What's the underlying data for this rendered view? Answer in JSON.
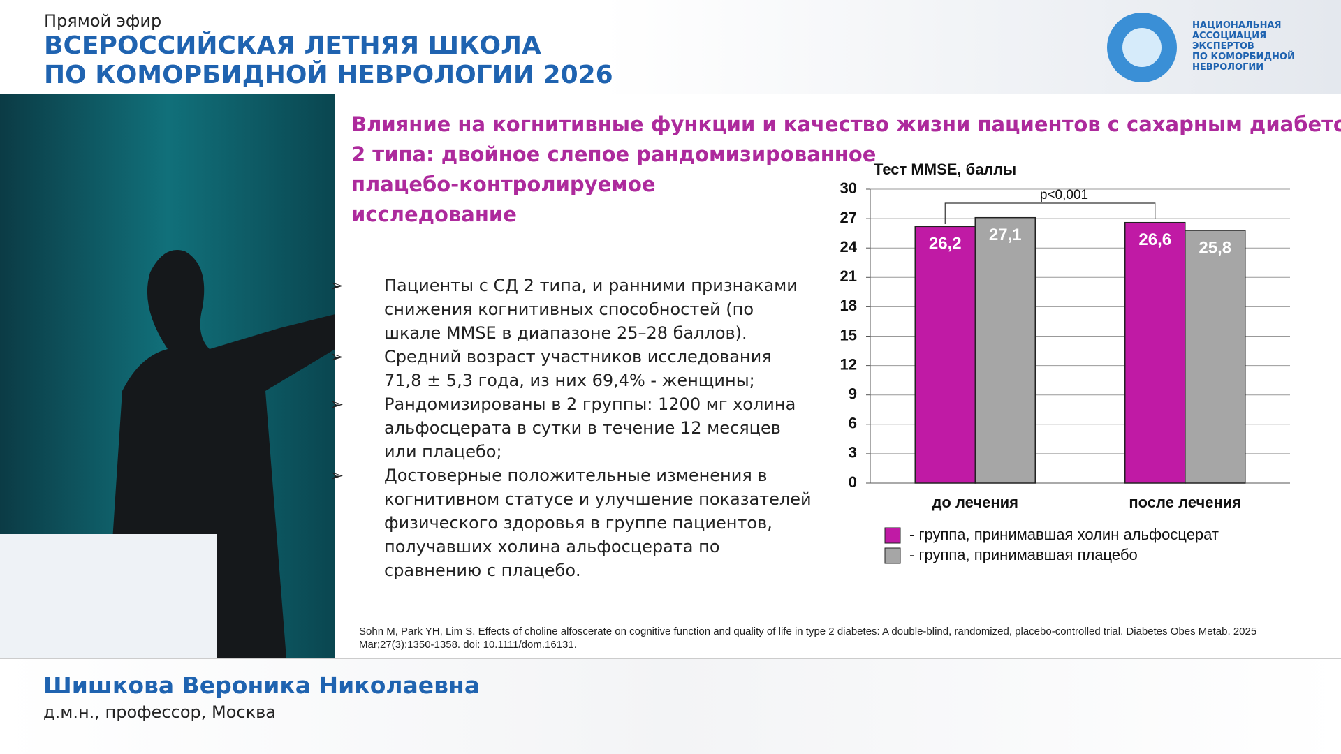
{
  "header": {
    "live": "Прямой эфир",
    "title_lines": [
      "ВСЕРОССИЙСКАЯ ЛЕТНЯЯ ШКОЛА",
      "ПО КОМОРБИДНОЙ НЕВРОЛОГИИ 2026"
    ]
  },
  "logo": {
    "lines": [
      "НАЦИОНАЛЬНАЯ",
      "АССОЦИАЦИЯ",
      "ЭКСПЕРТОВ",
      "ПО КОМОРБИДНОЙ",
      "НЕВРОЛОГИИ"
    ]
  },
  "slide": {
    "title_lines": [
      "Влияние  на когнитивные функции и качество жизни  пациентов с сахарным диабетом",
      "2 типа:  двойное слепое рандомизированное",
      "плацебо-контролируемое",
      "исследование"
    ],
    "bullets": [
      "Пациенты с СД 2 типа, и ранними признаками снижения когнитивных способностей (по шкале MMSE в диапазоне 25–28 баллов).",
      "Средний возраст участников исследования  71,8 ± 5,3 года, из них 69,4% - женщины;",
      "Рандомизированы в 2 группы:  1200 мг холина альфосцерата в сутки в течение 12 месяцев или плацебо;",
      "Достоверные положительные изменения в когнитивном статусе и улучшение показателей физического здоровья в группе пациентов, получавших холина альфосцерата по сравнению с плацебо."
    ],
    "citation": "Sohn M, Park YH, Lim S. Effects of choline alfoscerate on cognitive function and quality of life in type 2 diabetes: A double-blind, randomized, placebo-controlled trial. Diabetes Obes Metab. 2025 Mar;27(3):1350-1358. doi: 10.1111/dom.16131."
  },
  "chart_data": {
    "type": "bar",
    "title": "Тест MMSE, баллы",
    "categories": [
      "до лечения",
      "после лечения"
    ],
    "series": [
      {
        "name": "- группа, принимавшая холин альфосцерат",
        "color": "#c01aa5",
        "values": [
          26.2,
          26.6
        ],
        "value_labels": [
          "26,2",
          "26,6"
        ]
      },
      {
        "name": "- группа, принимавшая плацебо",
        "color": "#a6a6a6",
        "values": [
          27.1,
          25.8
        ],
        "value_labels": [
          "27,1",
          "25,8"
        ]
      }
    ],
    "ylim": [
      0,
      30
    ],
    "yticks": [
      0,
      3,
      6,
      9,
      12,
      15,
      18,
      21,
      24,
      27,
      30
    ],
    "grid": true,
    "annotation": "p<0,001"
  },
  "speaker": {
    "name": "Шишкова Вероника Николаевна",
    "role": "д.м.н., профессор, Москва"
  }
}
